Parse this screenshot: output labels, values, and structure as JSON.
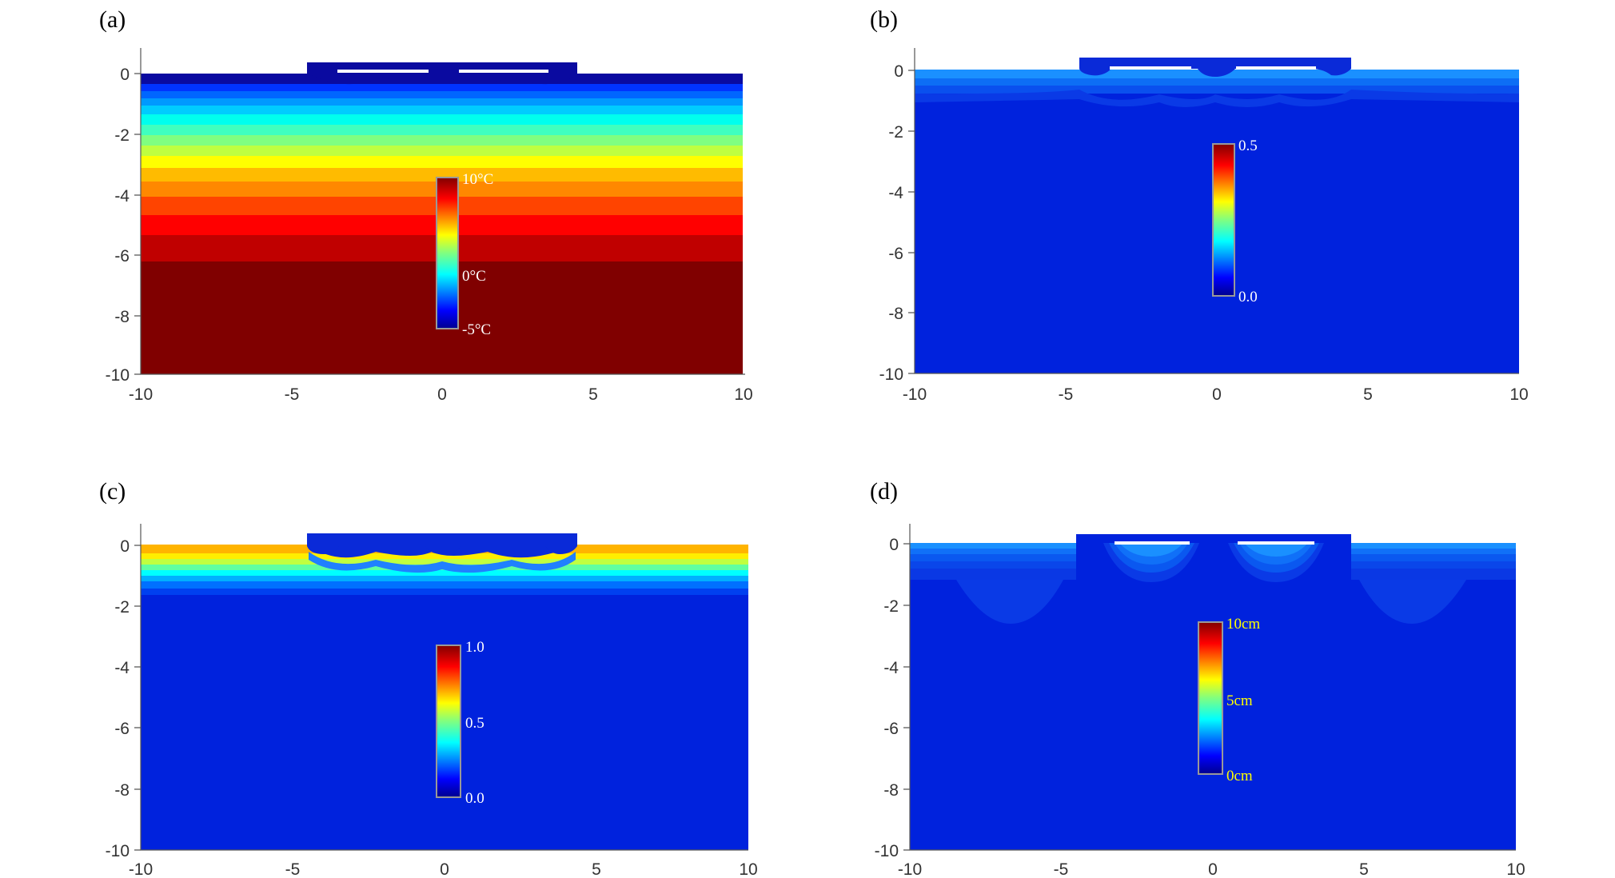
{
  "chart_data": [
    {
      "type": "heatmap",
      "panel": "(a)",
      "xticks": [
        "-10",
        "-5",
        "0",
        "5",
        "10"
      ],
      "yticks": [
        "0",
        "-2",
        "-4",
        "-6",
        "-8",
        "-10"
      ],
      "xlim": [
        -10,
        10
      ],
      "ylim": [
        -10,
        0.5
      ],
      "colorbar": {
        "labels": [
          "10°C",
          "0°C",
          "-5°C"
        ],
        "label_color": "#ffffff"
      },
      "description_values": {
        "top_value": -5,
        "bottom_value": 10
      }
    },
    {
      "type": "heatmap",
      "panel": "(b)",
      "xticks": [
        "-10",
        "-5",
        "0",
        "5",
        "10"
      ],
      "yticks": [
        "0",
        "-2",
        "-4",
        "-6",
        "-8",
        "-10"
      ],
      "xlim": [
        -10,
        10
      ],
      "ylim": [
        -10,
        0.5
      ],
      "colorbar": {
        "labels": [
          "0.5",
          "0.0"
        ],
        "label_color": "#ffffff"
      }
    },
    {
      "type": "heatmap",
      "panel": "(c)",
      "xticks": [
        "-10",
        "-5",
        "0",
        "5",
        "10"
      ],
      "yticks": [
        "0",
        "-2",
        "-4",
        "-6",
        "-8",
        "-10"
      ],
      "xlim": [
        -10,
        10
      ],
      "ylim": [
        -10,
        0.5
      ],
      "colorbar": {
        "labels": [
          "1.0",
          "0.5",
          "0.0"
        ],
        "label_color": "#ffffff"
      }
    },
    {
      "type": "heatmap",
      "panel": "(d)",
      "xticks": [
        "-10",
        "-5",
        "0",
        "5",
        "10"
      ],
      "yticks": [
        "0",
        "-2",
        "-4",
        "-6",
        "-8",
        "-10"
      ],
      "xlim": [
        -10,
        10
      ],
      "ylim": [
        -10,
        0.5
      ],
      "colorbar": {
        "labels": [
          "10cm",
          "5cm",
          "0cm"
        ],
        "label_color": "#ffff00"
      }
    }
  ]
}
